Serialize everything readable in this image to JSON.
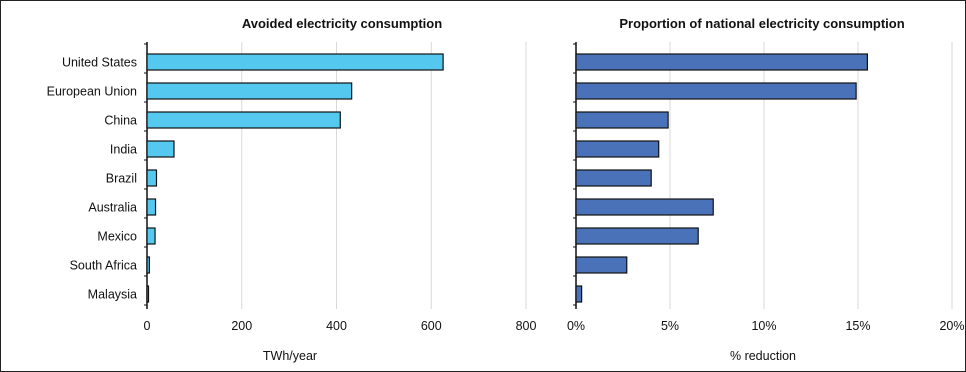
{
  "chart_data": [
    {
      "type": "bar",
      "orientation": "horizontal",
      "title": "Avoided electricity consumption",
      "xlabel": "TWh/year",
      "categories": [
        "United States",
        "European Union",
        "China",
        "India",
        "Brazil",
        "Australia",
        "Mexico",
        "South Africa",
        "Malaysia"
      ],
      "values": [
        625,
        432,
        408,
        57,
        20,
        18,
        17,
        5,
        2
      ],
      "xlim": [
        0,
        800
      ],
      "xticks": [
        0,
        200,
        400,
        600,
        800
      ],
      "tick_labels": [
        "0",
        "200",
        "400",
        "600",
        "800"
      ],
      "bar_color": "#55c8f0",
      "grid": true
    },
    {
      "type": "bar",
      "orientation": "horizontal",
      "title": "Proportion of national electricity consumption",
      "xlabel": "% reduction",
      "categories": [
        "United States",
        "European Union",
        "China",
        "India",
        "Brazil",
        "Australia",
        "Mexico",
        "South Africa",
        "Malaysia"
      ],
      "values": [
        15.5,
        14.9,
        4.9,
        4.4,
        4.0,
        7.3,
        6.5,
        2.7,
        0.3
      ],
      "xlim": [
        0,
        20
      ],
      "xticks": [
        0,
        5,
        10,
        15,
        20
      ],
      "tick_labels": [
        "0%",
        "5%",
        "10%",
        "15%",
        "20%"
      ],
      "bar_color": "#4a72b8",
      "grid": true
    }
  ]
}
